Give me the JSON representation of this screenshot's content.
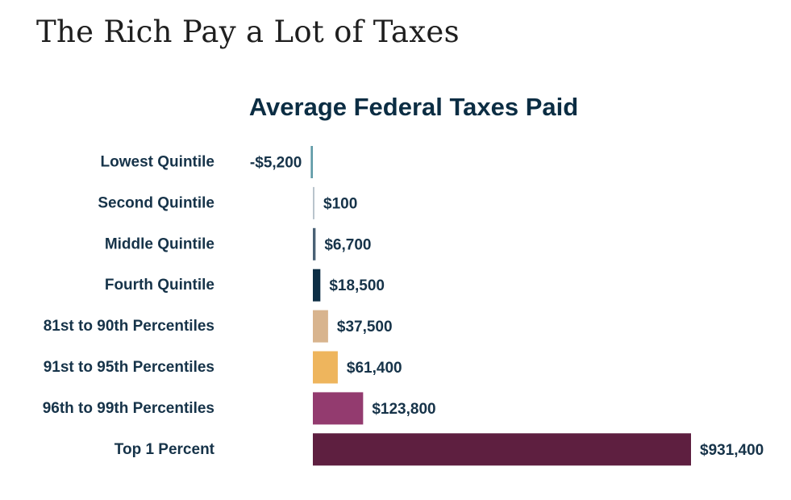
{
  "page": {
    "title": "The Rich Pay a Lot of Taxes"
  },
  "chart_data": {
    "type": "bar",
    "orientation": "horizontal",
    "title": "Average Federal Taxes Paid",
    "xlabel": "",
    "ylabel": "",
    "categories": [
      "Lowest Quintile",
      "Second Quintile",
      "Middle Quintile",
      "Fourth Quintile",
      "81st to 90th Percentiles",
      "91st to 95th Percentiles",
      "96th to 99th Percentiles",
      "Top 1 Percent"
    ],
    "values": [
      -5200,
      100,
      6700,
      18500,
      37500,
      61400,
      123800,
      931400
    ],
    "value_labels": [
      "-$5,200",
      "$100",
      "$6,700",
      "$18,500",
      "$37,500",
      "$61,400",
      "$123,800",
      "$931,400"
    ],
    "colors": [
      "#5e9aa6",
      "#b9c4cc",
      "#4a6175",
      "#0d2e45",
      "#d8b48e",
      "#eeb55d",
      "#933b6f",
      "#5e1f40"
    ],
    "grid": false,
    "legend": "none"
  }
}
